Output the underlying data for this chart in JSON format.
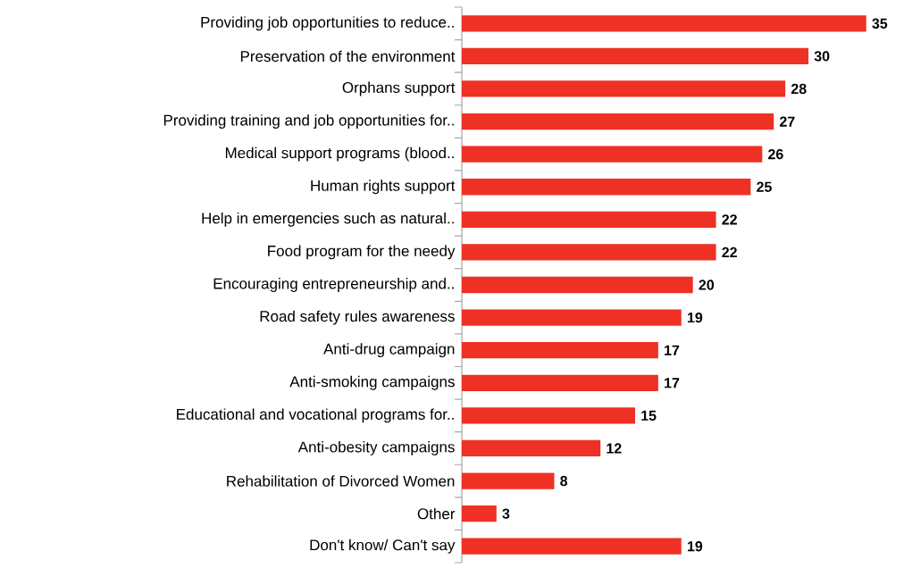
{
  "chart_data": {
    "type": "bar",
    "orientation": "horizontal",
    "data_labels": true,
    "color": "#ee3124",
    "categories": [
      "Providing job opportunities to reduce..",
      "Preservation of the environment",
      "Orphans support",
      "Providing training and job opportunities for..",
      "Medical support programs (blood..",
      "Human rights support",
      "Help in emergencies such as natural..",
      "Food program for the needy",
      "Encouraging entrepreneurship and..",
      "Road safety rules awareness",
      "Anti-drug campaign",
      "Anti-smoking campaigns",
      "Educational and vocational programs for..",
      "Anti-obesity campaigns",
      "Rehabilitation of Divorced Women",
      "Other",
      "Don't know/ Can't say"
    ],
    "values": [
      35,
      30,
      28,
      27,
      26,
      25,
      22,
      22,
      20,
      19,
      17,
      17,
      15,
      12,
      8,
      3,
      19
    ]
  }
}
